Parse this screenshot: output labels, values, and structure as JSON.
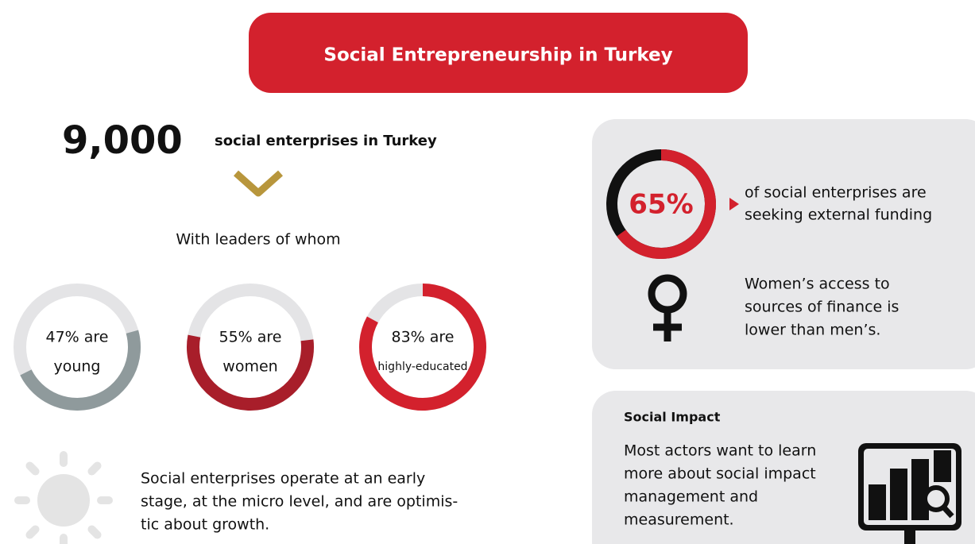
{
  "title": "Social Entrepreneurship in Turkey",
  "headline": {
    "number": "9,000",
    "text": "social enterprises in Turkey"
  },
  "leaders": {
    "intro": "With leaders of whom",
    "rings": [
      {
        "value": 47,
        "lines": [
          "47% are",
          "young"
        ],
        "color": "#8f9a9c"
      },
      {
        "value": 55,
        "lines": [
          "55% are",
          "women"
        ],
        "color": "#a81e2a"
      },
      {
        "value": 83,
        "lines": [
          "83% are",
          "highly-educated"
        ],
        "color": "#d3212d"
      }
    ]
  },
  "growth": {
    "lines": [
      "Social enterprises operate at an early",
      "stage, at the micro level, and are optimis-",
      "tic about growth."
    ]
  },
  "funding": {
    "value": 65,
    "label": "65%",
    "lines": [
      "of social enterprises are",
      "seeking external funding"
    ]
  },
  "women": {
    "lines": [
      "Women’s access to",
      "sources of finance is",
      "lower than men’s."
    ]
  },
  "impact": {
    "title": "Social Impact",
    "lines": [
      "Most actors want to learn",
      "more about social impact",
      "management and",
      "measurement."
    ]
  }
}
